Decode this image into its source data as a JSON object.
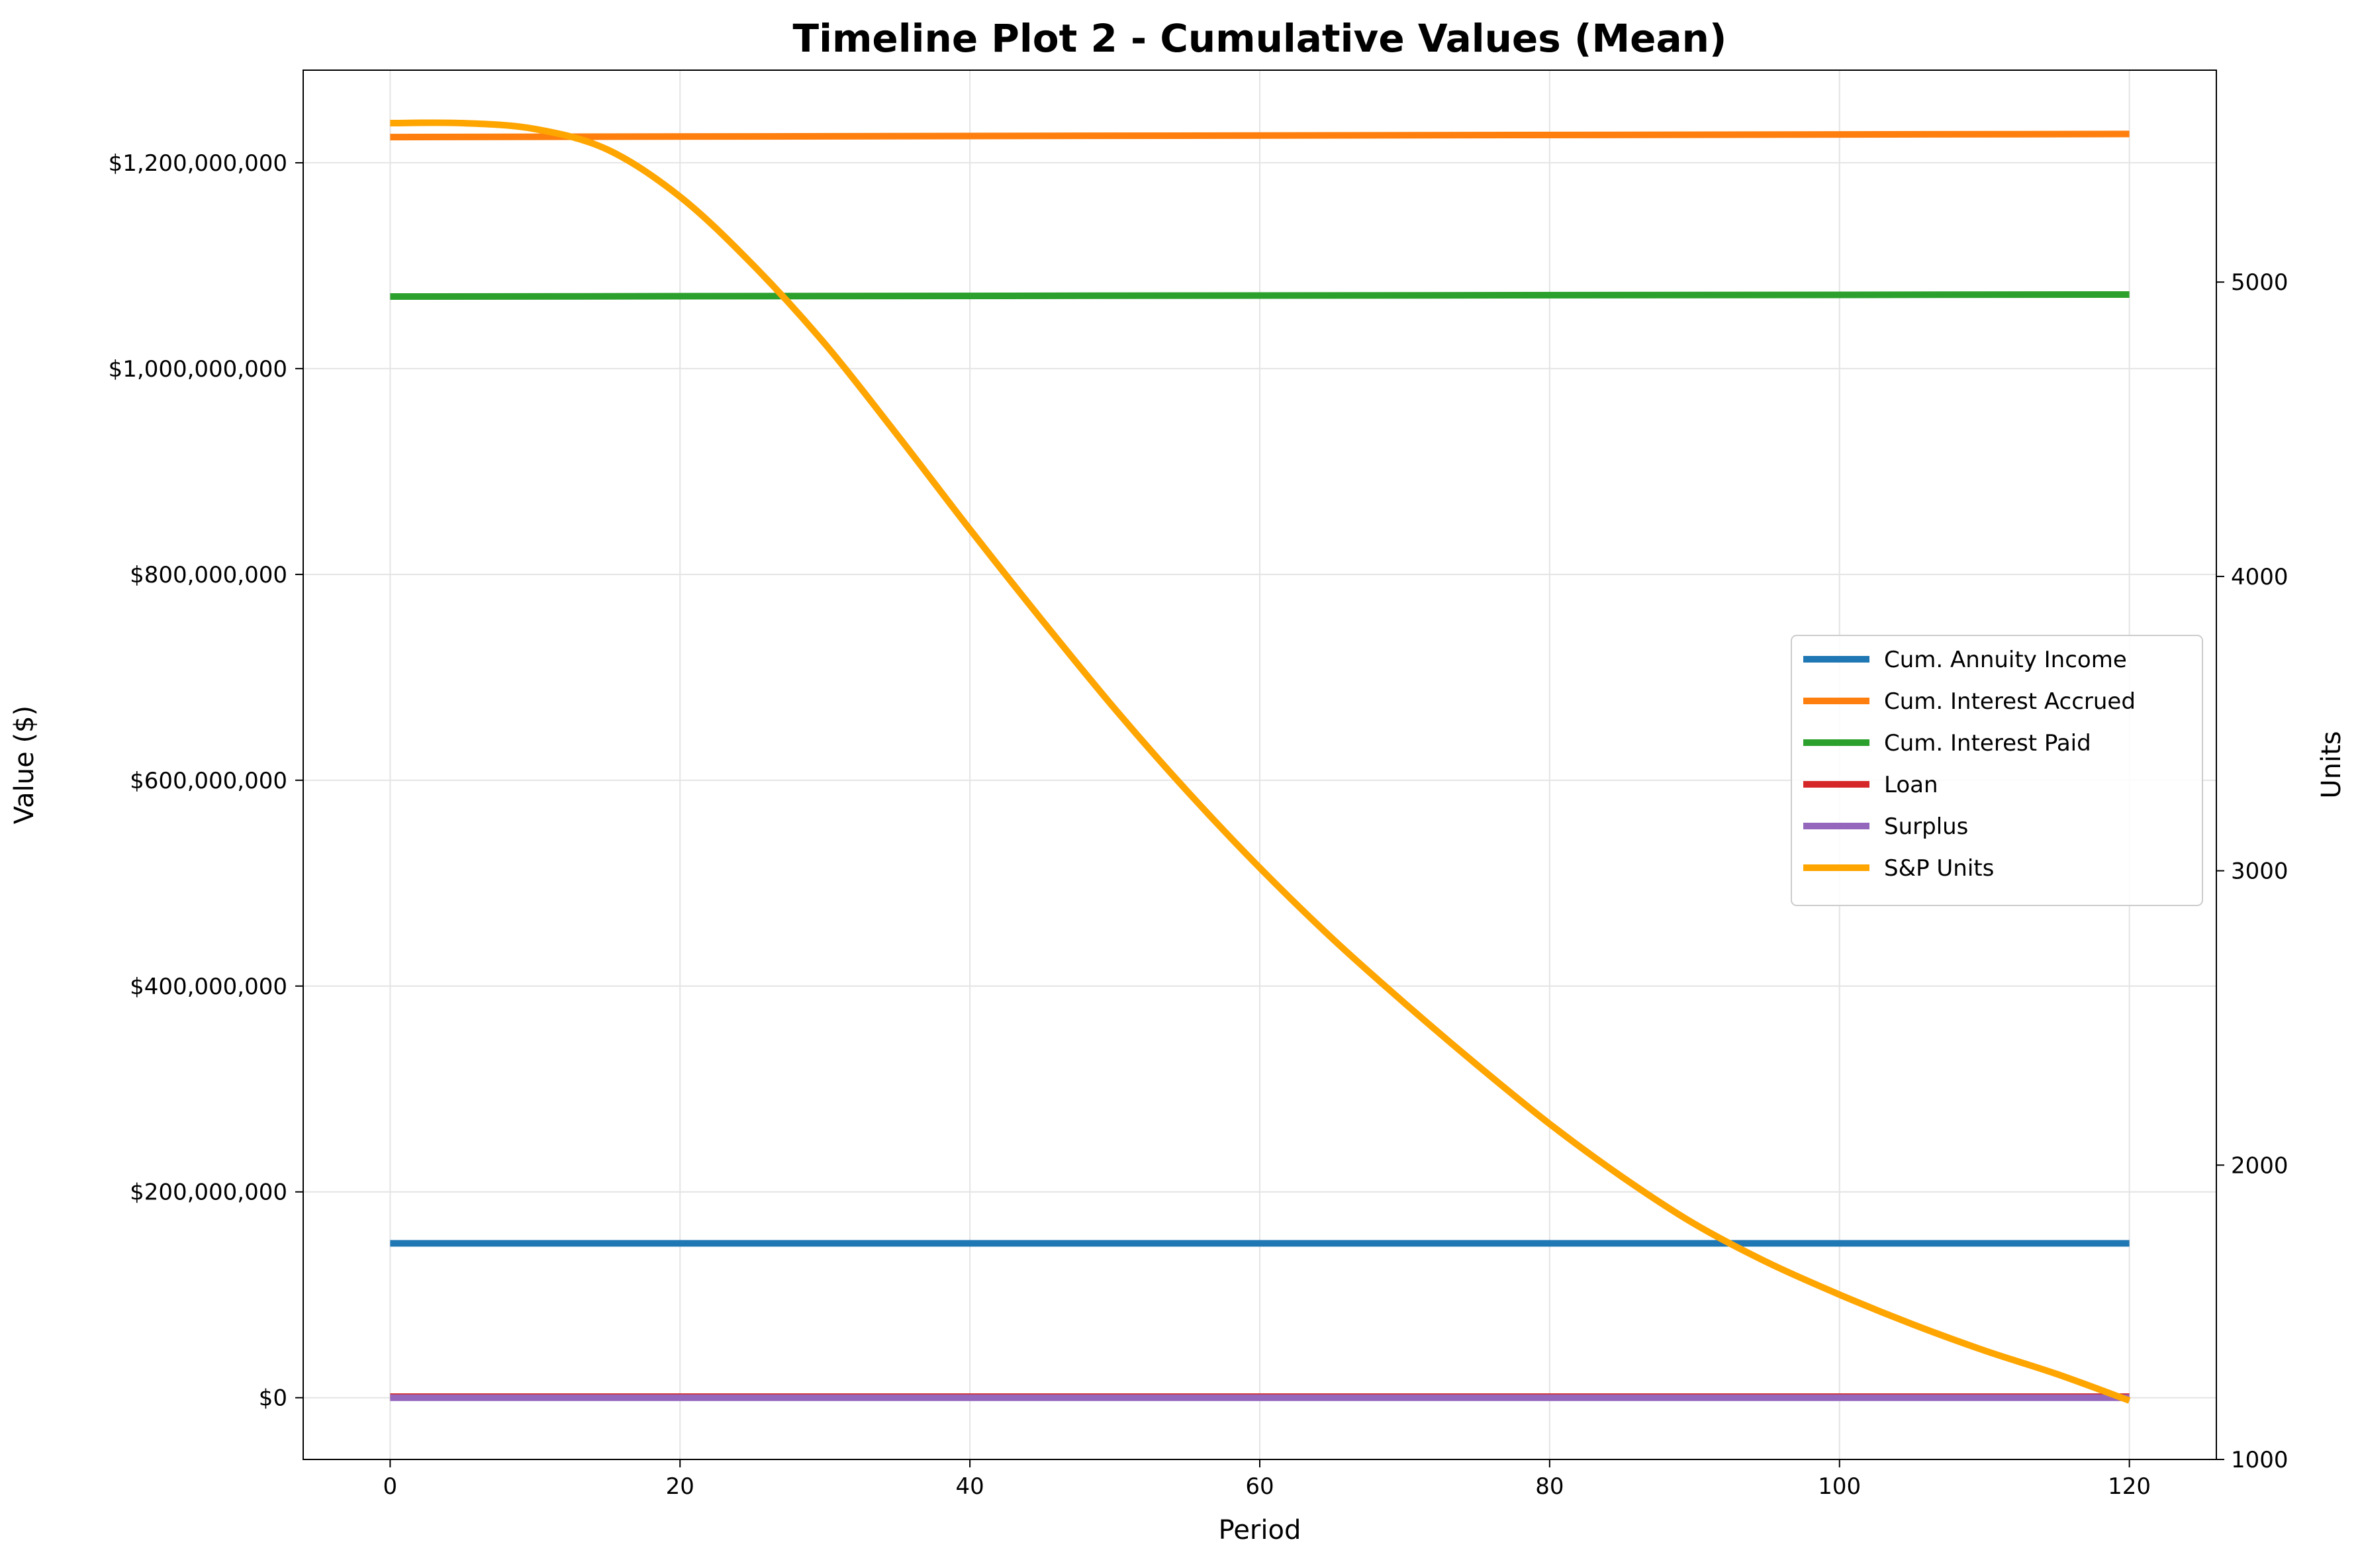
{
  "chart_data": {
    "type": "line",
    "title": "Timeline Plot 2 - Cumulative Values (Mean)",
    "xlabel": "Period",
    "ylabel": "Value ($)",
    "y2label": "Units",
    "xlim": [
      -6,
      126
    ],
    "ylim": [
      -60000000,
      1290000000
    ],
    "y2lim": [
      1000,
      5720
    ],
    "xticks": [
      0,
      20,
      40,
      60,
      80,
      100,
      120
    ],
    "xtick_labels": [
      "0",
      "20",
      "40",
      "60",
      "80",
      "100",
      "120"
    ],
    "yticks": [
      0,
      200000000,
      400000000,
      600000000,
      800000000,
      1000000000,
      1200000000
    ],
    "ytick_labels": [
      "$0",
      "$200,000,000",
      "$400,000,000",
      "$600,000,000",
      "$800,000,000",
      "$1,000,000,000",
      "$1,200,000,000"
    ],
    "y2ticks": [
      1000,
      2000,
      3000,
      4000,
      5000
    ],
    "y2tick_labels": [
      "1000",
      "2000",
      "3000",
      "4000",
      "5000"
    ],
    "grid": true,
    "legend_position": "center-right",
    "series": [
      {
        "name": "Cum. Annuity Income",
        "color": "#1f77b4",
        "axis": "left",
        "x": [
          0,
          120
        ],
        "values": [
          150000000,
          150000000
        ]
      },
      {
        "name": "Cum. Interest Accrued",
        "color": "#ff7f0e",
        "axis": "left",
        "x": [
          0,
          120
        ],
        "values": [
          1225000000,
          1228000000
        ]
      },
      {
        "name": "Cum. Interest Paid",
        "color": "#2ca02c",
        "axis": "left",
        "x": [
          0,
          120
        ],
        "values": [
          1070000000,
          1072000000
        ]
      },
      {
        "name": "Loan",
        "color": "#d62728",
        "axis": "left",
        "x": [
          0,
          120
        ],
        "values": [
          1000000,
          1000000
        ]
      },
      {
        "name": "Surplus",
        "color": "#9467bd",
        "axis": "left",
        "x": [
          0,
          120
        ],
        "values": [
          0,
          0
        ]
      },
      {
        "name": "S&P Units",
        "color": "#ffa500",
        "axis": "right",
        "x": [
          0,
          5,
          10,
          15,
          20,
          25,
          30,
          35,
          40,
          45,
          50,
          55,
          60,
          65,
          70,
          75,
          80,
          85,
          90,
          95,
          100,
          105,
          110,
          115,
          120
        ],
        "values": [
          5540,
          5540,
          5520,
          5450,
          5290,
          5060,
          4790,
          4480,
          4160,
          3850,
          3550,
          3270,
          3010,
          2770,
          2550,
          2340,
          2140,
          1960,
          1800,
          1670,
          1560,
          1460,
          1370,
          1290,
          1200
        ]
      }
    ]
  }
}
